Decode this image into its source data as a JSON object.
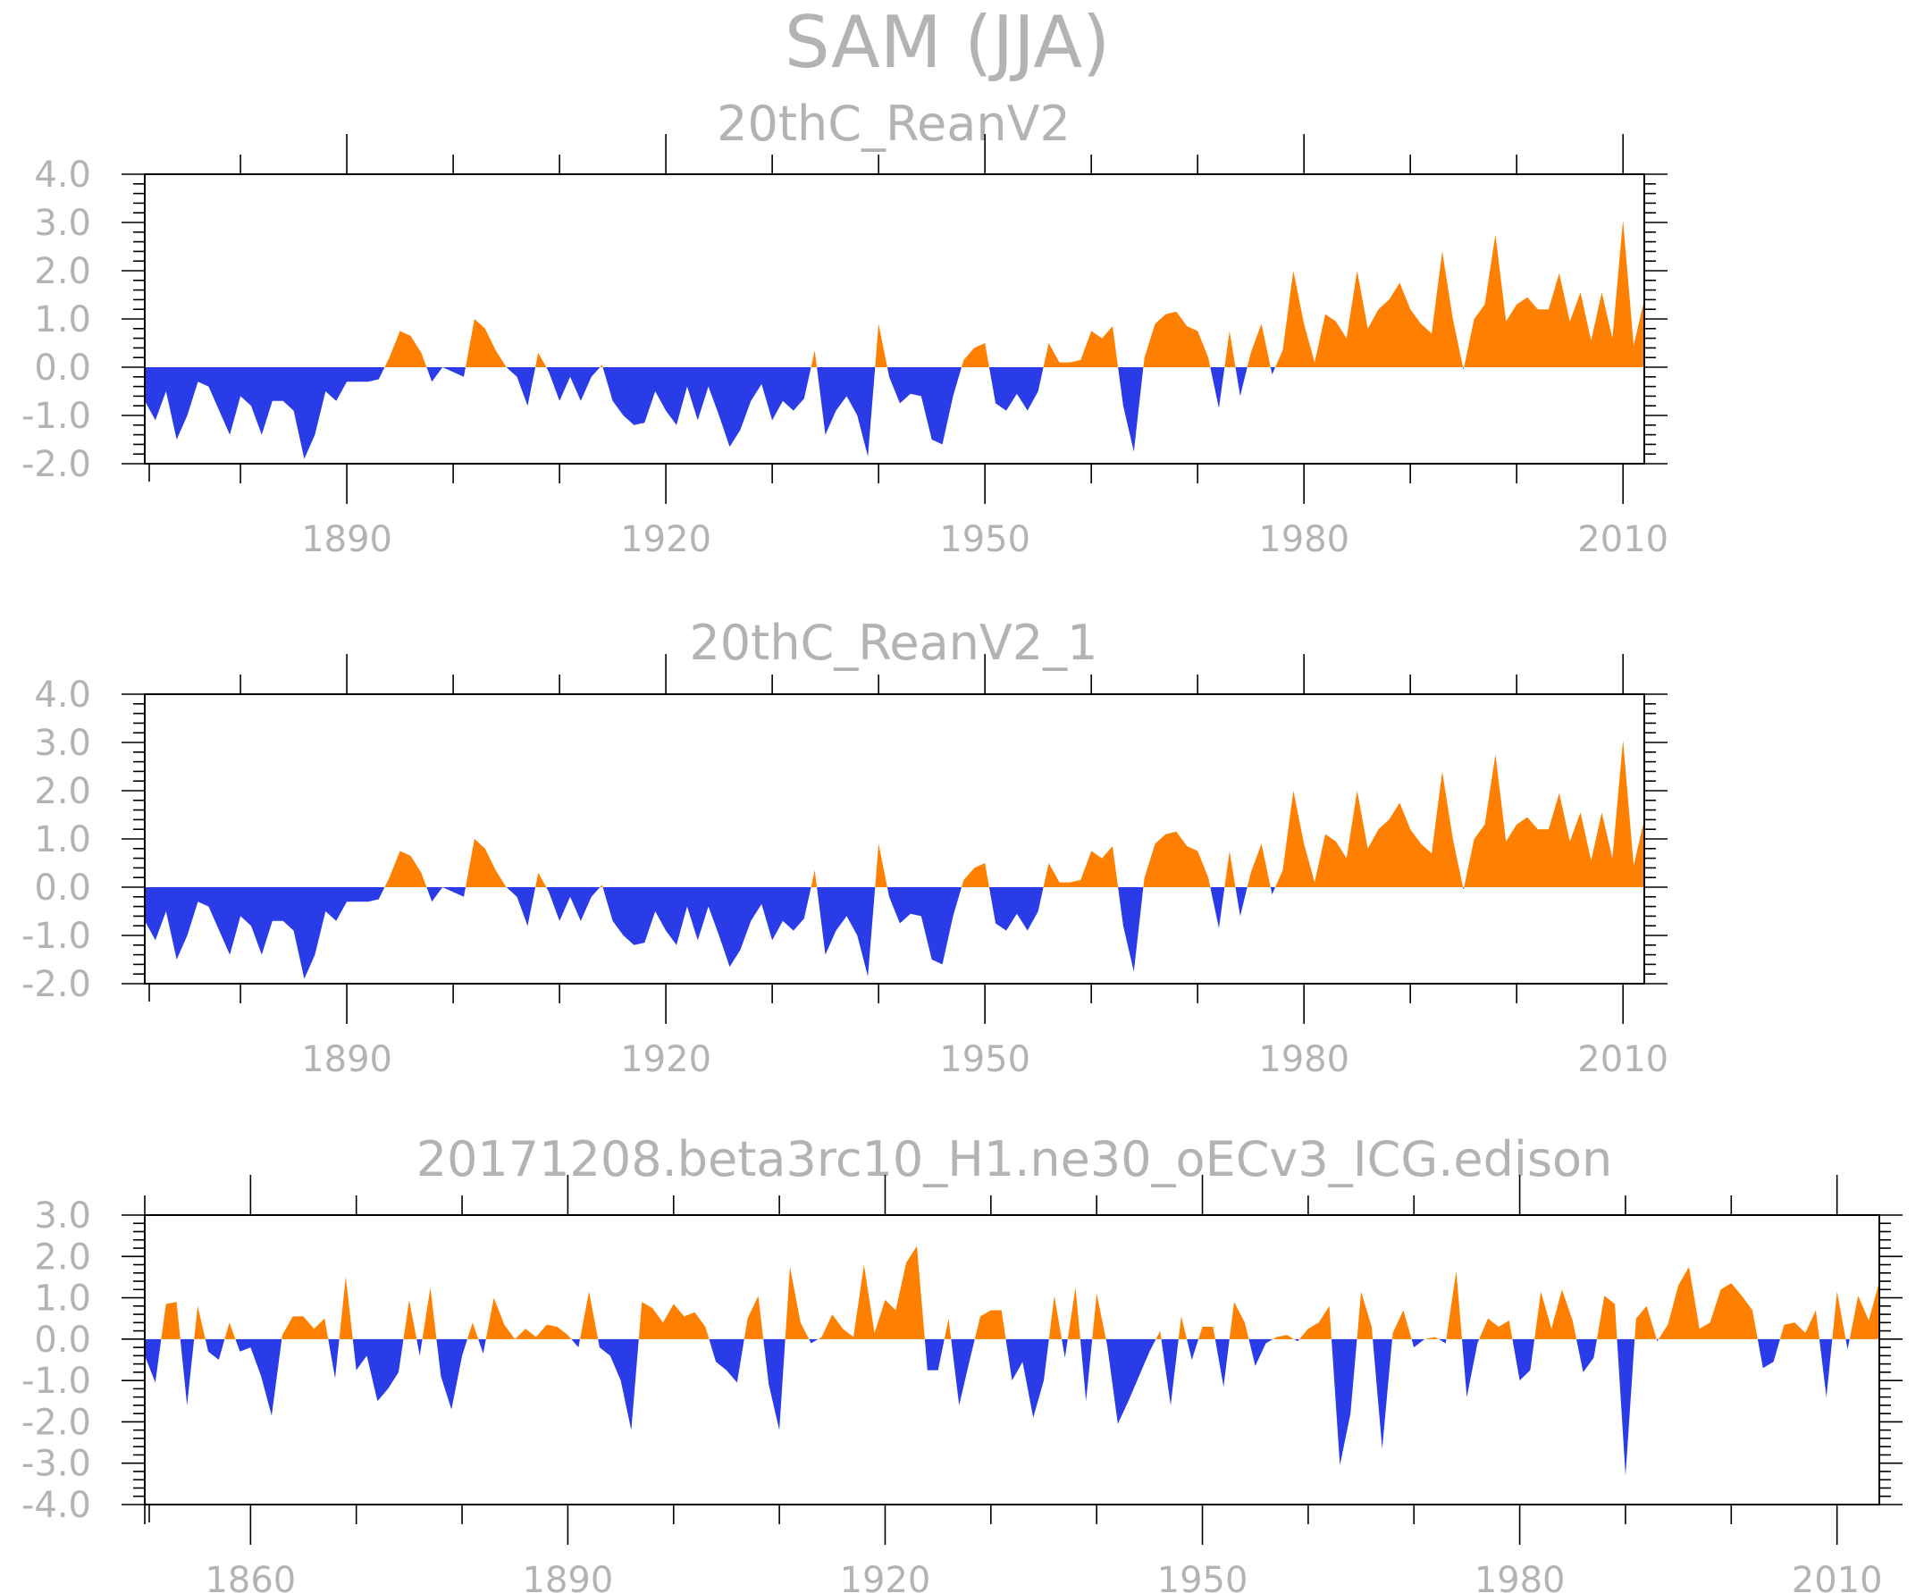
{
  "figure": {
    "title": "SAM  (JJA)",
    "colors": {
      "positive": "#ff8000",
      "negative": "#2a3be8",
      "text": "#b3b3b3",
      "axis": "#000000"
    }
  },
  "chart_data": [
    {
      "type": "area",
      "title": "20thC_ReanV2",
      "xlabel": "",
      "ylabel": "",
      "xlim": [
        1871,
        2012
      ],
      "ylim": [
        -2.0,
        4.0
      ],
      "x_ticks": [
        1890,
        1920,
        1950,
        1980,
        2010
      ],
      "x_tick_labels": [
        "1890",
        "1920",
        "1950",
        "1980",
        "2010"
      ],
      "y_ticks": [
        -2.0,
        -1.0,
        0.0,
        1.0,
        2.0,
        3.0,
        4.0
      ],
      "y_tick_labels": [
        "-2.0",
        "-1.0",
        "0.0",
        "1.0",
        "2.0",
        "3.0",
        "4.0"
      ],
      "fill_above_zero": "orange",
      "fill_below_zero": "blue",
      "x_start": 1871,
      "values": [
        -0.7,
        -1.1,
        -0.5,
        -1.5,
        -1.0,
        -0.3,
        -0.4,
        -0.9,
        -1.4,
        -0.6,
        -0.8,
        -1.4,
        -0.7,
        -0.7,
        -0.9,
        -1.9,
        -1.4,
        -0.5,
        -0.7,
        -0.3,
        -0.3,
        -0.3,
        -0.25,
        0.2,
        0.75,
        0.65,
        0.3,
        -0.3,
        0.0,
        -0.1,
        -0.2,
        1.0,
        0.8,
        0.35,
        0.0,
        -0.2,
        -0.8,
        0.3,
        -0.1,
        -0.7,
        -0.2,
        -0.7,
        -0.2,
        0.05,
        -0.7,
        -1.0,
        -1.2,
        -1.15,
        -0.5,
        -0.9,
        -1.2,
        -0.4,
        -1.1,
        -0.4,
        -1.0,
        -1.65,
        -1.3,
        -0.7,
        -0.35,
        -1.1,
        -0.7,
        -0.9,
        -0.65,
        0.35,
        -1.4,
        -0.9,
        -0.6,
        -1.0,
        -1.85,
        0.9,
        -0.2,
        -0.75,
        -0.55,
        -0.6,
        -1.5,
        -1.6,
        -0.6,
        0.15,
        0.4,
        0.5,
        -0.75,
        -0.9,
        -0.55,
        -0.9,
        -0.5,
        0.5,
        0.1,
        0.1,
        0.15,
        0.75,
        0.6,
        0.85,
        -0.8,
        -1.75,
        0.2,
        0.9,
        1.1,
        1.15,
        0.85,
        0.75,
        0.2,
        -0.85,
        0.75,
        -0.6,
        0.3,
        0.9,
        -0.15,
        0.35,
        2.0,
        0.9,
        0.1,
        1.1,
        0.95,
        0.6,
        2.0,
        0.8,
        1.2,
        1.4,
        1.75,
        1.2,
        0.9,
        0.7,
        2.4,
        1.0,
        -0.05,
        1.0,
        1.3,
        2.75,
        0.95,
        1.3,
        1.45,
        1.2,
        1.2,
        1.95,
        0.95,
        1.55,
        0.55,
        1.55,
        0.6,
        3.05,
        0.45,
        1.4
      ]
    },
    {
      "type": "area",
      "title": "20thC_ReanV2_1",
      "xlabel": "",
      "ylabel": "",
      "xlim": [
        1871,
        2012
      ],
      "ylim": [
        -2.0,
        4.0
      ],
      "x_ticks": [
        1890,
        1920,
        1950,
        1980,
        2010
      ],
      "x_tick_labels": [
        "1890",
        "1920",
        "1950",
        "1980",
        "2010"
      ],
      "y_ticks": [
        -2.0,
        -1.0,
        0.0,
        1.0,
        2.0,
        3.0,
        4.0
      ],
      "y_tick_labels": [
        "-2.0",
        "-1.0",
        "0.0",
        "1.0",
        "2.0",
        "3.0",
        "4.0"
      ],
      "fill_above_zero": "orange",
      "fill_below_zero": "blue",
      "x_start": 1871,
      "values": [
        -0.7,
        -1.1,
        -0.5,
        -1.5,
        -1.0,
        -0.3,
        -0.4,
        -0.9,
        -1.4,
        -0.6,
        -0.8,
        -1.4,
        -0.7,
        -0.7,
        -0.9,
        -1.9,
        -1.4,
        -0.5,
        -0.7,
        -0.3,
        -0.3,
        -0.3,
        -0.25,
        0.2,
        0.75,
        0.65,
        0.3,
        -0.3,
        0.0,
        -0.1,
        -0.2,
        1.0,
        0.8,
        0.35,
        0.0,
        -0.2,
        -0.8,
        0.3,
        -0.1,
        -0.7,
        -0.2,
        -0.7,
        -0.2,
        0.05,
        -0.7,
        -1.0,
        -1.2,
        -1.15,
        -0.5,
        -0.9,
        -1.2,
        -0.4,
        -1.1,
        -0.4,
        -1.0,
        -1.65,
        -1.3,
        -0.7,
        -0.35,
        -1.1,
        -0.7,
        -0.9,
        -0.65,
        0.35,
        -1.4,
        -0.9,
        -0.6,
        -1.0,
        -1.85,
        0.9,
        -0.2,
        -0.75,
        -0.55,
        -0.6,
        -1.5,
        -1.6,
        -0.6,
        0.15,
        0.4,
        0.5,
        -0.75,
        -0.9,
        -0.55,
        -0.9,
        -0.5,
        0.5,
        0.1,
        0.1,
        0.15,
        0.75,
        0.6,
        0.85,
        -0.8,
        -1.75,
        0.2,
        0.9,
        1.1,
        1.15,
        0.85,
        0.75,
        0.2,
        -0.85,
        0.75,
        -0.6,
        0.3,
        0.9,
        -0.15,
        0.35,
        2.0,
        0.9,
        0.1,
        1.1,
        0.95,
        0.6,
        2.0,
        0.8,
        1.2,
        1.4,
        1.75,
        1.2,
        0.9,
        0.7,
        2.4,
        1.0,
        -0.05,
        1.0,
        1.3,
        2.75,
        0.95,
        1.3,
        1.45,
        1.2,
        1.2,
        1.95,
        0.95,
        1.55,
        0.55,
        1.55,
        0.6,
        3.05,
        0.45,
        1.4
      ]
    },
    {
      "type": "area",
      "title": "20171208.beta3rc10_H1.ne30_oECv3_ICG.edison",
      "xlabel": "",
      "ylabel": "",
      "xlim": [
        1850,
        2014
      ],
      "ylim": [
        -4.0,
        3.0
      ],
      "x_ticks": [
        1860,
        1890,
        1920,
        1950,
        1980,
        2010
      ],
      "x_tick_labels": [
        "1860",
        "1890",
        "1920",
        "1950",
        "1980",
        "2010"
      ],
      "y_ticks": [
        -4.0,
        -3.0,
        -2.0,
        -1.0,
        0.0,
        1.0,
        2.0,
        3.0
      ],
      "y_tick_labels": [
        "-4.0",
        "-3.0",
        "-2.0",
        "-1.0",
        "0.0",
        "1.0",
        "2.0",
        "3.0"
      ],
      "fill_above_zero": "orange",
      "fill_below_zero": "blue",
      "x_start": 1850,
      "values": [
        -0.4,
        -1.05,
        0.85,
        0.9,
        -1.6,
        0.8,
        -0.3,
        -0.5,
        0.4,
        -0.3,
        -0.2,
        -0.9,
        -1.85,
        0.1,
        0.55,
        0.55,
        0.25,
        0.5,
        -0.95,
        1.5,
        -0.75,
        -0.4,
        -1.5,
        -1.2,
        -0.8,
        0.95,
        -0.4,
        1.25,
        -0.9,
        -1.7,
        -0.4,
        0.4,
        -0.35,
        1.0,
        0.35,
        0.0,
        0.25,
        0.05,
        0.35,
        0.3,
        0.1,
        -0.2,
        1.15,
        -0.2,
        -0.4,
        -1.0,
        -2.2,
        0.9,
        0.75,
        0.4,
        0.85,
        0.55,
        0.65,
        0.3,
        -0.55,
        -0.75,
        -1.05,
        0.5,
        1.05,
        -1.1,
        -2.2,
        1.75,
        0.4,
        -0.1,
        0.05,
        0.6,
        0.25,
        0.05,
        1.8,
        0.15,
        0.95,
        0.7,
        1.85,
        2.25,
        -0.75,
        -0.75,
        0.5,
        -1.6,
        -0.5,
        0.55,
        0.7,
        0.7,
        -1.0,
        -0.55,
        -1.9,
        -1.0,
        1.05,
        -0.45,
        1.25,
        -1.5,
        1.1,
        -0.15,
        -2.05,
        -1.5,
        -0.9,
        -0.3,
        0.2,
        -1.6,
        0.55,
        -0.5,
        0.3,
        0.3,
        -1.15,
        0.9,
        0.4,
        -0.65,
        -0.1,
        0.05,
        0.1,
        -0.05,
        0.25,
        0.4,
        0.8,
        -3.05,
        -1.8,
        1.15,
        0.3,
        -2.65,
        0.15,
        0.7,
        -0.2,
        0.0,
        0.05,
        -0.1,
        1.65,
        -1.4,
        -0.1,
        0.5,
        0.3,
        0.45,
        -1.0,
        -0.75,
        1.15,
        0.25,
        1.2,
        0.45,
        -0.8,
        -0.45,
        1.05,
        0.85,
        -3.3,
        0.5,
        0.8,
        -0.05,
        0.35,
        1.3,
        1.75,
        0.25,
        0.4,
        1.2,
        1.35,
        1.05,
        0.7,
        -0.7,
        -0.55,
        0.35,
        0.4,
        0.15,
        0.7,
        -1.4,
        1.15,
        -0.25,
        1.05,
        0.45,
        1.4
      ]
    }
  ]
}
